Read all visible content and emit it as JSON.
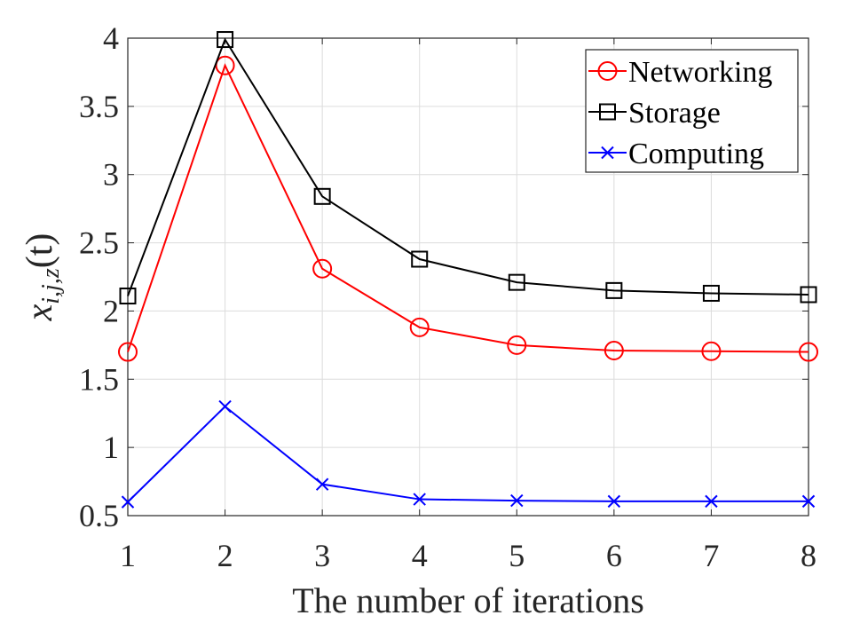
{
  "chart_data": {
    "type": "line",
    "title": "",
    "xlabel": "The number of iterations",
    "ylabel": {
      "main": "x",
      "sub": "i,j,z",
      "arg": "(t)"
    },
    "x": [
      1,
      2,
      3,
      4,
      5,
      6,
      7,
      8
    ],
    "xlim": [
      1,
      8
    ],
    "ylim": [
      0.5,
      4
    ],
    "xticks": [
      "1",
      "2",
      "3",
      "4",
      "5",
      "6",
      "7",
      "8"
    ],
    "yticks": [
      {
        "value": 0.5,
        "label": "0.5"
      },
      {
        "value": 1,
        "label": "1"
      },
      {
        "value": 1.5,
        "label": "1.5"
      },
      {
        "value": 2,
        "label": "2"
      },
      {
        "value": 2.5,
        "label": "2.5"
      },
      {
        "value": 3,
        "label": "3"
      },
      {
        "value": 3.5,
        "label": "3.5"
      },
      {
        "value": 4,
        "label": "4"
      }
    ],
    "grid": true,
    "legend_position": "top-right",
    "series": [
      {
        "name": "Networking",
        "color": "#ff0000",
        "marker": "circle",
        "values": [
          1.7,
          3.8,
          2.31,
          1.88,
          1.75,
          1.71,
          1.705,
          1.7
        ]
      },
      {
        "name": "Storage",
        "color": "#000000",
        "marker": "square",
        "values": [
          2.11,
          3.99,
          2.84,
          2.38,
          2.21,
          2.15,
          2.13,
          2.12
        ]
      },
      {
        "name": "Computing",
        "color": "#0000ff",
        "marker": "x",
        "values": [
          0.6,
          1.3,
          0.73,
          0.62,
          0.61,
          0.605,
          0.605,
          0.605
        ]
      }
    ]
  }
}
